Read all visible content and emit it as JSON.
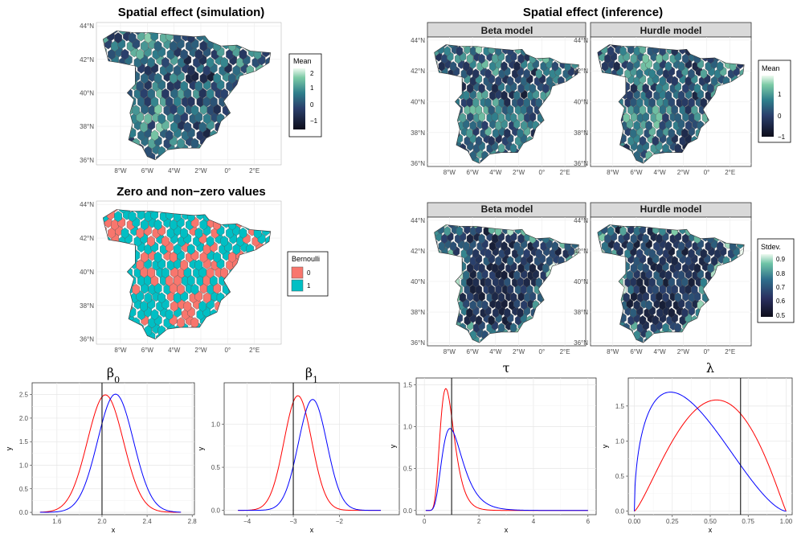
{
  "maps": {
    "sim_title": "Spatial effect (simulation)",
    "zero_title": "Zero and non−zero values",
    "inf_title": "Spatial effect (inference)",
    "beta_strip": "Beta model",
    "hurdle_strip": "Hurdle model",
    "lat_ticks": [
      "44°N",
      "42°N",
      "40°N",
      "38°N",
      "36°N"
    ],
    "lon_ticks": [
      "8°W",
      "6°W",
      "4°W",
      "2°W",
      "0°",
      "2°E"
    ],
    "colors": {
      "low": "#0d0d1a",
      "mid": "#2f5f86",
      "high": "#e8f7ee",
      "bern0": "#f8766d",
      "bern1": "#00bfc4",
      "border": "#555555",
      "strip_bg": "#d9d9d9"
    }
  },
  "legends": {
    "sim_mean": {
      "title": "Mean",
      "labels": [
        "2",
        "1",
        "0",
        "−1"
      ]
    },
    "inf_mean": {
      "title": "Mean",
      "labels": [
        "1",
        "0",
        "−1"
      ]
    },
    "inf_sd": {
      "title": "Stdev.",
      "labels": [
        "0.9",
        "0.8",
        "0.7",
        "0.6",
        "0.5"
      ]
    },
    "bernoulli": {
      "title": "Bernoulli",
      "labels": [
        "0",
        "1"
      ]
    }
  },
  "chart_data": [
    {
      "type": "line",
      "title": "β0",
      "xlabel": "x",
      "ylabel": "y",
      "xlim": [
        1.38,
        2.82
      ],
      "ylim": [
        -0.05,
        2.75
      ],
      "xticks": [
        "1.6",
        "2.0",
        "2.4",
        "2.8"
      ],
      "yticks": [
        "0.0",
        "0.5",
        "1.0",
        "1.5",
        "2.0",
        "2.5"
      ],
      "vline": 2.0,
      "series": [
        {
          "color": "#ff0000",
          "dist": "normal",
          "mean": 2.03,
          "sd": 0.16,
          "range": [
            1.45,
            2.7
          ]
        },
        {
          "color": "#0000ff",
          "dist": "normal",
          "mean": 2.12,
          "sd": 0.159,
          "range": [
            1.45,
            2.7
          ]
        }
      ]
    },
    {
      "type": "line",
      "title": "β1",
      "xlabel": "x",
      "ylabel": "y",
      "xlim": [
        -4.5,
        -0.7
      ],
      "ylim": [
        -0.05,
        1.48
      ],
      "xticks": [
        "−4",
        "−3",
        "−2"
      ],
      "yticks": [
        "0.0",
        "0.5",
        "1.0"
      ],
      "vline": -3.0,
      "series": [
        {
          "color": "#ff0000",
          "dist": "normal",
          "mean": -2.9,
          "sd": 0.3,
          "range": [
            -4.2,
            -1.1
          ]
        },
        {
          "color": "#0000ff",
          "dist": "normal",
          "mean": -2.58,
          "sd": 0.31,
          "range": [
            -4.2,
            -1.1
          ]
        }
      ]
    },
    {
      "type": "line",
      "title": "τ",
      "xlabel": "x",
      "ylabel": "y",
      "xlim": [
        -0.3,
        6.3
      ],
      "ylim": [
        -0.05,
        1.58
      ],
      "xticks": [
        "0",
        "2",
        "4",
        "6"
      ],
      "yticks": [
        "0.0",
        "0.5",
        "1.0",
        "1.5"
      ],
      "vline": 1.0,
      "series": [
        {
          "color": "#ff0000",
          "dist": "lognormal",
          "mu": -0.13,
          "sigma": 0.33,
          "range": [
            0.05,
            6.0
          ]
        },
        {
          "color": "#0000ff",
          "dist": "lognormal",
          "mu": 0.1,
          "sigma": 0.4,
          "range": [
            0.05,
            6.0
          ]
        }
      ]
    },
    {
      "type": "line",
      "title": "λ",
      "xlabel": "x",
      "ylabel": "y",
      "xlim": [
        -0.04,
        1.04
      ],
      "ylim": [
        -0.05,
        1.9
      ],
      "xticks": [
        "0.00",
        "0.25",
        "0.50",
        "0.75",
        "1.00"
      ],
      "yticks": [
        "0.0",
        "0.5",
        "1.0",
        "1.5"
      ],
      "vline": 0.7,
      "series": [
        {
          "color": "#ff0000",
          "dist": "beta",
          "a": 2.3,
          "b": 2.1,
          "range": [
            0.0,
            1.0
          ]
        },
        {
          "color": "#0000ff",
          "dist": "beta",
          "a": 1.5,
          "b": 2.6,
          "range": [
            0.0,
            1.0
          ]
        }
      ]
    }
  ]
}
